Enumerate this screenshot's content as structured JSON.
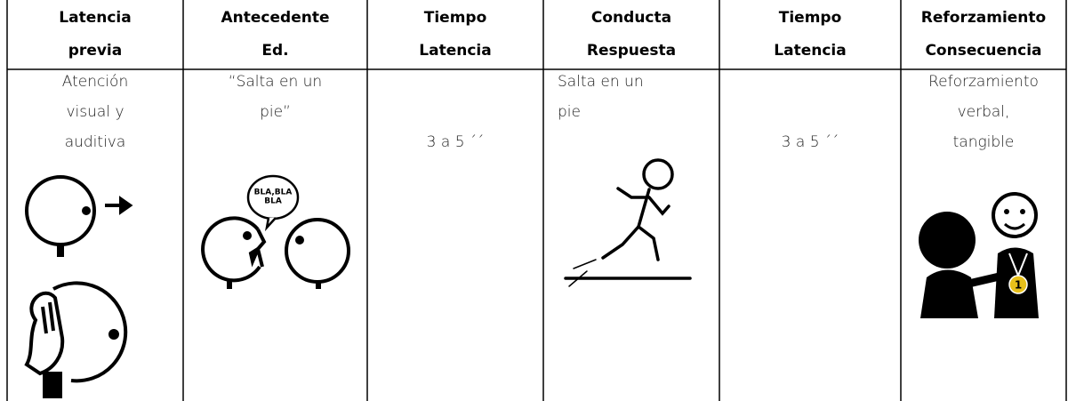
{
  "table": {
    "header": [
      [
        "Latencia",
        "previa"
      ],
      [
        "Antecedente",
        "Ed."
      ],
      [
        "Tiempo",
        "Latencia"
      ],
      [
        "Conducta",
        "Respuesta"
      ],
      [
        "Tiempo",
        "Latencia"
      ],
      [
        "Reforzamiento",
        "Consecuencia"
      ]
    ],
    "row": [
      [
        "Atención",
        "visual y",
        "auditiva"
      ],
      [
        "“Salta en un",
        "pie”"
      ],
      [
        "3 a 5 ´´"
      ],
      [
        "Salta en un",
        "pie"
      ],
      [
        "3 a 5 ´´"
      ],
      [
        "Reforzamiento",
        "verbal,",
        "tangible"
      ]
    ]
  },
  "pictograms": {
    "speech_bubble": [
      "BLA,BLA",
      "BLA"
    ],
    "medal": "1"
  }
}
